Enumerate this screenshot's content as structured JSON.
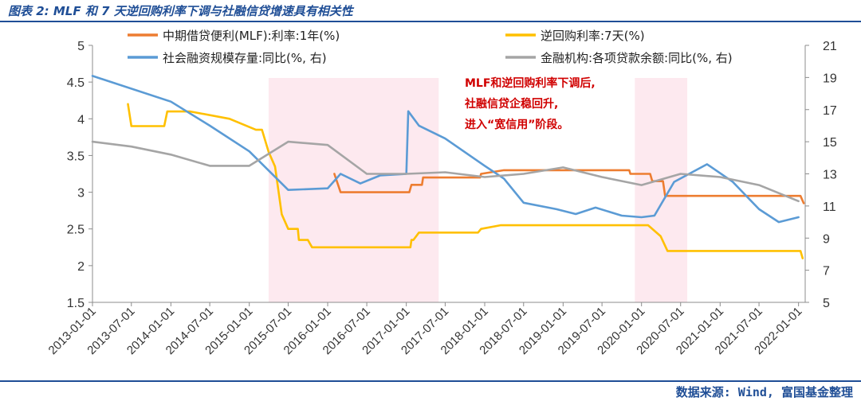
{
  "header": {
    "title": "图表 2: MLF 和 7 天逆回购利率下调与社融信贷增速具有相关性"
  },
  "footer": {
    "source": "数据来源: Wind, 富国基金整理"
  },
  "chart_data": {
    "type": "line",
    "colors": {
      "mlf": "#ed7d31",
      "rr7": "#ffc000",
      "tsf": "#5b9bd5",
      "loan": "#a5a5a5",
      "shade": "#fde9ef"
    },
    "x_range": [
      "2013-01-01",
      "2022-02-01"
    ],
    "x_ticks": [
      "2013-01-01",
      "2013-07-01",
      "2014-01-01",
      "2014-07-01",
      "2015-01-01",
      "2015-07-01",
      "2016-01-01",
      "2016-07-01",
      "2017-01-01",
      "2017-07-01",
      "2018-01-01",
      "2018-07-01",
      "2019-01-01",
      "2019-07-01",
      "2020-01-01",
      "2020-07-01",
      "2021-01-01",
      "2021-07-01",
      "2022-01-01"
    ],
    "y_left": {
      "min": 1.5,
      "max": 5,
      "ticks": [
        "1.5",
        "2",
        "2.5",
        "3",
        "3.5",
        "4",
        "4.5",
        "5"
      ]
    },
    "y_right": {
      "min": 5,
      "max": 21,
      "ticks": [
        "5",
        "7",
        "9",
        "11",
        "13",
        "15",
        "17",
        "19",
        "21"
      ]
    },
    "shaded_periods": [
      [
        "2015-04-01",
        "2017-06-01"
      ],
      [
        "2019-12-01",
        "2020-08-01"
      ]
    ],
    "annotation": [
      "MLF和逆回购利率下调后,",
      "社融信贷企稳回升,",
      "进入“宽信用”阶段。"
    ],
    "series": [
      {
        "key": "mlf",
        "name": "中期借贷便利(MLF):利率:1年(%)",
        "axis": "left",
        "points": [
          [
            "2016-02-01",
            3.25
          ],
          [
            "2016-03-01",
            3.0
          ],
          [
            "2017-01-15",
            3.0
          ],
          [
            "2017-01-25",
            3.1
          ],
          [
            "2017-03-15",
            3.1
          ],
          [
            "2017-03-20",
            3.2
          ],
          [
            "2017-12-10",
            3.2
          ],
          [
            "2017-12-15",
            3.25
          ],
          [
            "2018-04-01",
            3.3
          ],
          [
            "2019-11-05",
            3.3
          ],
          [
            "2019-11-10",
            3.25
          ],
          [
            "2020-02-10",
            3.25
          ],
          [
            "2020-02-20",
            3.15
          ],
          [
            "2020-04-10",
            3.15
          ],
          [
            "2020-04-20",
            2.95
          ],
          [
            "2022-01-10",
            2.95
          ],
          [
            "2022-01-25",
            2.85
          ]
        ]
      },
      {
        "key": "rr7",
        "name": "逆回购利率:7天(%)",
        "axis": "left",
        "points": [
          [
            "2013-06-15",
            4.2
          ],
          [
            "2013-07-01",
            3.9
          ],
          [
            "2013-12-01",
            3.9
          ],
          [
            "2013-12-15",
            4.1
          ],
          [
            "2014-04-01",
            4.1
          ],
          [
            "2014-10-01",
            4.0
          ],
          [
            "2015-02-01",
            3.85
          ],
          [
            "2015-03-01",
            3.85
          ],
          [
            "2015-04-01",
            3.55
          ],
          [
            "2015-05-01",
            3.35
          ],
          [
            "2015-06-01",
            2.7
          ],
          [
            "2015-07-01",
            2.5
          ],
          [
            "2015-08-15",
            2.5
          ],
          [
            "2015-08-20",
            2.35
          ],
          [
            "2015-10-01",
            2.35
          ],
          [
            "2015-10-20",
            2.25
          ],
          [
            "2017-01-20",
            2.25
          ],
          [
            "2017-01-25",
            2.35
          ],
          [
            "2017-02-03",
            2.35
          ],
          [
            "2017-03-01",
            2.45
          ],
          [
            "2017-12-01",
            2.45
          ],
          [
            "2017-12-15",
            2.5
          ],
          [
            "2018-03-15",
            2.55
          ],
          [
            "2020-02-01",
            2.55
          ],
          [
            "2020-03-30",
            2.4
          ],
          [
            "2020-05-01",
            2.2
          ],
          [
            "2022-01-10",
            2.2
          ],
          [
            "2022-01-20",
            2.1
          ]
        ]
      },
      {
        "key": "tsf",
        "name": "社会融资规模存量:同比(%, 右)",
        "axis": "right",
        "points": [
          [
            "2013-01-01",
            19.1
          ],
          [
            "2014-01-01",
            17.5
          ],
          [
            "2014-07-01",
            16.0
          ],
          [
            "2015-01-01",
            14.4
          ],
          [
            "2015-07-01",
            12.0
          ],
          [
            "2016-01-01",
            12.1
          ],
          [
            "2016-03-01",
            13.0
          ],
          [
            "2016-06-01",
            12.4
          ],
          [
            "2016-09-01",
            12.9
          ],
          [
            "2017-01-01",
            13.0
          ],
          [
            "2017-01-10",
            16.9
          ],
          [
            "2017-03-01",
            16.0
          ],
          [
            "2017-07-01",
            15.2
          ],
          [
            "2018-01-01",
            13.5
          ],
          [
            "2018-04-01",
            12.7
          ],
          [
            "2018-07-01",
            11.2
          ],
          [
            "2018-12-01",
            10.8
          ],
          [
            "2019-03-01",
            10.5
          ],
          [
            "2019-06-01",
            10.9
          ],
          [
            "2019-10-01",
            10.4
          ],
          [
            "2020-01-01",
            10.3
          ],
          [
            "2020-03-01",
            10.4
          ],
          [
            "2020-06-01",
            12.5
          ],
          [
            "2020-11-01",
            13.6
          ],
          [
            "2021-03-01",
            12.5
          ],
          [
            "2021-07-01",
            10.8
          ],
          [
            "2021-10-01",
            10.0
          ],
          [
            "2022-01-01",
            10.3
          ]
        ]
      },
      {
        "key": "loan",
        "name": "金融机构:各项贷款余额:同比(%, 右)",
        "axis": "right",
        "points": [
          [
            "2013-01-01",
            15.0
          ],
          [
            "2013-07-01",
            14.7
          ],
          [
            "2014-01-01",
            14.2
          ],
          [
            "2014-07-01",
            13.5
          ],
          [
            "2015-01-01",
            13.5
          ],
          [
            "2015-07-01",
            15.0
          ],
          [
            "2016-01-01",
            14.8
          ],
          [
            "2016-07-01",
            13.0
          ],
          [
            "2017-01-01",
            13.0
          ],
          [
            "2017-07-01",
            13.1
          ],
          [
            "2018-01-01",
            12.8
          ],
          [
            "2018-07-01",
            13.0
          ],
          [
            "2019-01-01",
            13.4
          ],
          [
            "2019-07-01",
            12.8
          ],
          [
            "2020-01-01",
            12.3
          ],
          [
            "2020-07-01",
            13.0
          ],
          [
            "2021-01-01",
            12.8
          ],
          [
            "2021-07-01",
            12.3
          ],
          [
            "2022-01-01",
            11.3
          ]
        ]
      }
    ]
  }
}
